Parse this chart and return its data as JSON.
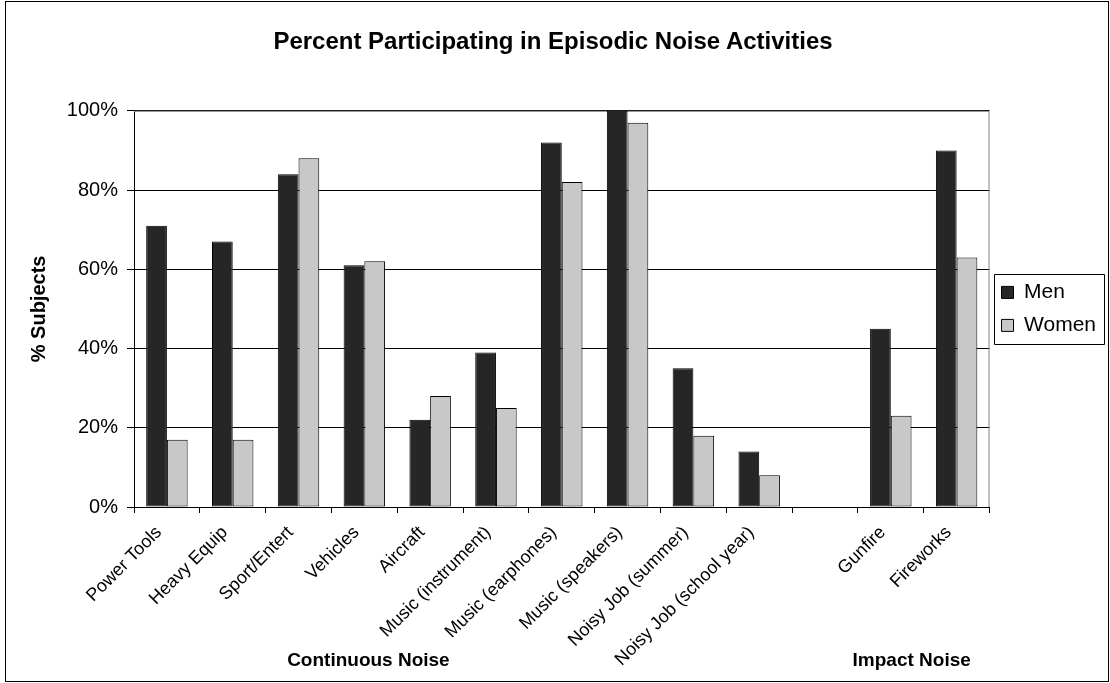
{
  "chart_data": {
    "type": "bar",
    "title": "Percent Participating in Episodic Noise Activities",
    "ylabel": "% Subjects",
    "categories": [
      "Power Tools",
      "Heavy Equip",
      "Sport/Entert",
      "Vehicles",
      "Aircraft",
      "Music (instrument)",
      "Music (earphones)",
      "Music (speakers)",
      "Noisy Job (summer)",
      "Noisy Job (school year)",
      null,
      "Gunfire",
      "Fireworks"
    ],
    "series": [
      {
        "name": "Men",
        "color": "#262626",
        "values": [
          71,
          67,
          84,
          61,
          22,
          39,
          92,
          100,
          35,
          14,
          null,
          45,
          90
        ]
      },
      {
        "name": "Women",
        "color": "#c8c8c8",
        "values": [
          17,
          17,
          88,
          62,
          28,
          25,
          82,
          97,
          18,
          8,
          null,
          23,
          63
        ]
      }
    ],
    "ylim": [
      0,
      100
    ],
    "yticks": [
      {
        "value": 0,
        "label": "0%"
      },
      {
        "value": 20,
        "label": "20%"
      },
      {
        "value": 40,
        "label": "40%"
      },
      {
        "value": 60,
        "label": "60%"
      },
      {
        "value": 80,
        "label": "80%"
      },
      {
        "value": 100,
        "label": "100%"
      }
    ],
    "grid": "y",
    "legend": "right",
    "annotations": [
      "Continuous Noise",
      "Impact Noise"
    ]
  }
}
